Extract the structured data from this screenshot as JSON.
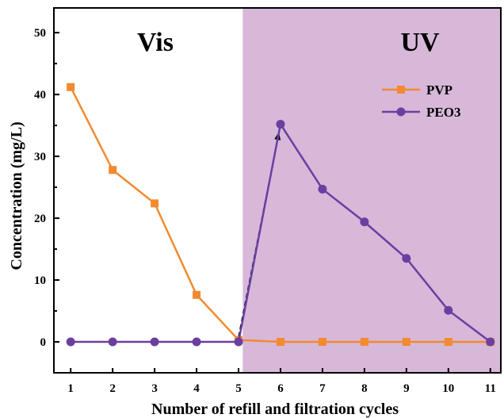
{
  "chart_data": {
    "type": "line",
    "title": "",
    "xlabel": "Number of refill and filtration cycles",
    "ylabel": "Concentration (mg/L)",
    "x_ticks": [
      1,
      2,
      3,
      4,
      5,
      6,
      7,
      8,
      9,
      10,
      11
    ],
    "y_ticks": [
      0,
      10,
      20,
      30,
      40,
      50
    ],
    "xlim": [
      0.6,
      11.25
    ],
    "ylim": [
      -5,
      54
    ],
    "grid": false,
    "legend_position": "top-right",
    "regions": [
      {
        "label": "Vis",
        "x_start": 0.6,
        "x_end": 5.1,
        "color": "#ffffff"
      },
      {
        "label": "UV",
        "x_start": 5.1,
        "x_end": 11.25,
        "color": "#d7b8d9"
      }
    ],
    "series": [
      {
        "name": "PVP",
        "marker": "square",
        "color": "#f28a30",
        "x": [
          1,
          2,
          3,
          4,
          5,
          6,
          7,
          8,
          9,
          10,
          11
        ],
        "y": [
          41.2,
          27.8,
          22.4,
          7.6,
          0.3,
          0,
          0,
          0,
          0,
          0,
          0
        ]
      },
      {
        "name": "PEO3",
        "marker": "circle",
        "color": "#6a3fa0",
        "x": [
          1,
          2,
          3,
          4,
          5,
          6,
          7,
          8,
          9,
          10,
          11
        ],
        "y": [
          0,
          0,
          0,
          0,
          0,
          35.2,
          24.7,
          19.4,
          13.5,
          5.1,
          0
        ]
      }
    ],
    "annotations": [
      {
        "type": "dashed-arrow",
        "from": [
          5,
          0.3
        ],
        "to": [
          6,
          35.2
        ]
      }
    ]
  }
}
